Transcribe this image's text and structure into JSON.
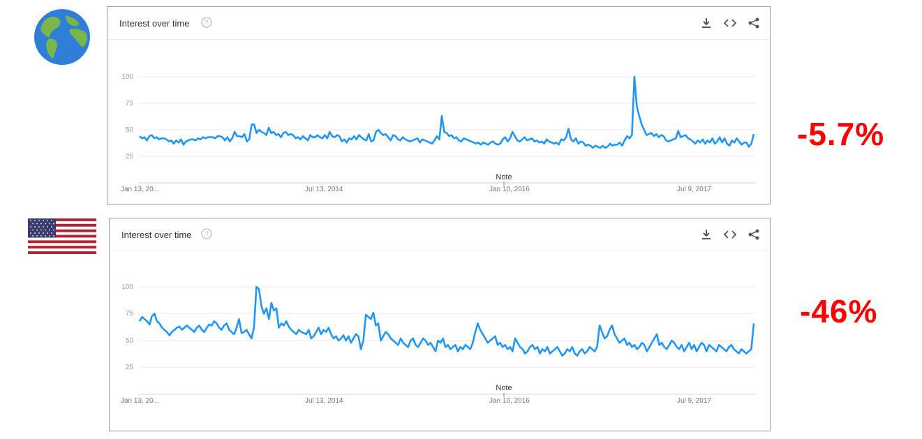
{
  "panels": [
    {
      "region_icon": "globe-icon",
      "title": "Interest over time",
      "tools": [
        "download-icon",
        "embed-icon",
        "share-icon"
      ],
      "change": "-5.7%",
      "note": "Note",
      "colors": {
        "line": "#2196f3",
        "change": "#ff0000",
        "grid": "#e9e9e9"
      },
      "chart_data": {
        "type": "line",
        "xlabel": "",
        "ylabel": "",
        "ylim": [
          0,
          100
        ],
        "y_ticks": [
          "25",
          "50",
          "75",
          "100"
        ],
        "x_tick_labels": [
          "Jan 13, 20...",
          "Jul 13, 2014",
          "Jan 10, 2016",
          "Jul 9, 2017"
        ],
        "series": [
          {
            "values": [
              44,
              42,
              43,
              40,
              44,
              45,
              42,
              43,
              41,
              42,
              42,
              41,
              39,
              40,
              37,
              40,
              38,
              41,
              36,
              39,
              40,
              41,
              41,
              40,
              42,
              41,
              43,
              42,
              43,
              43,
              43,
              42,
              44,
              44,
              43,
              40,
              43,
              39,
              42,
              48,
              44,
              44,
              43,
              46,
              39,
              41,
              55,
              55,
              47,
              50,
              48,
              47,
              45,
              52,
              47,
              48,
              45,
              46,
              43,
              47,
              48,
              45,
              46,
              45,
              42,
              43,
              41,
              44,
              42,
              40,
              45,
              43,
              43,
              45,
              43,
              42,
              45,
              42,
              48,
              44,
              43,
              45,
              44,
              39,
              41,
              38,
              42,
              41,
              44,
              41,
              45,
              43,
              41,
              40,
              46,
              39,
              40,
              48,
              50,
              47,
              45,
              46,
              43,
              40,
              45,
              44,
              41,
              40,
              43,
              41,
              40,
              39,
              40,
              41,
              42,
              38,
              41,
              40,
              39,
              38,
              37,
              40,
              44,
              41,
              63,
              48,
              47,
              44,
              45,
              42,
              43,
              40,
              39,
              42,
              41,
              40,
              39,
              38,
              37,
              38,
              36,
              38,
              37,
              36,
              38,
              39,
              37,
              36,
              37,
              41,
              43,
              39,
              42,
              48,
              44,
              40,
              39,
              41,
              43,
              40,
              41,
              42,
              39,
              40,
              38,
              39,
              37,
              41,
              39,
              38,
              37,
              38,
              36,
              41,
              40,
              43,
              51,
              41,
              39,
              42,
              37,
              39,
              38,
              35,
              36,
              35,
              33,
              35,
              34,
              33,
              35,
              33,
              34,
              37,
              35,
              36,
              36,
              38,
              35,
              40,
              44,
              42,
              45,
              100,
              72,
              63,
              55,
              50,
              45,
              46,
              47,
              44,
              46,
              43,
              45,
              44,
              40,
              39,
              40,
              41,
              42,
              49,
              43,
              44,
              45,
              42,
              41,
              39,
              37,
              40,
              38,
              41,
              37,
              40,
              38,
              42,
              37,
              39,
              43,
              38,
              42,
              37,
              35,
              40,
              38,
              42,
              39,
              36,
              38,
              38,
              34,
              37,
              46
            ]
          }
        ]
      }
    },
    {
      "region_icon": "us-flag-icon",
      "title": "Interest over time",
      "tools": [
        "download-icon",
        "embed-icon",
        "share-icon"
      ],
      "change": "-46%",
      "note": "Note",
      "colors": {
        "line": "#2196f3",
        "change": "#ff0000",
        "grid": "#e9e9e9"
      },
      "chart_data": {
        "type": "line",
        "xlabel": "",
        "ylabel": "",
        "ylim": [
          0,
          100
        ],
        "y_ticks": [
          "25",
          "50",
          "75",
          "100"
        ],
        "x_tick_labels": [
          "Jan 13, 20...",
          "Jul 13, 2014",
          "Jan 10, 2016",
          "Jul 9, 2017"
        ],
        "series": [
          {
            "values": [
              68,
              72,
              70,
              68,
              65,
              73,
              75,
              68,
              66,
              62,
              60,
              58,
              55,
              58,
              60,
              62,
              63,
              60,
              62,
              64,
              62,
              60,
              58,
              62,
              64,
              60,
              58,
              62,
              65,
              64,
              68,
              66,
              62,
              60,
              64,
              66,
              60,
              58,
              56,
              62,
              70,
              57,
              58,
              60,
              56,
              52,
              62,
              100,
              98,
              82,
              75,
              80,
              70,
              85,
              78,
              80,
              62,
              66,
              64,
              68,
              63,
              60,
              58,
              56,
              60,
              58,
              57,
              56,
              60,
              52,
              54,
              58,
              62,
              56,
              60,
              58,
              62,
              56,
              52,
              54,
              50,
              52,
              55,
              50,
              54,
              48,
              52,
              56,
              54,
              42,
              50,
              74,
              72,
              70,
              76,
              64,
              66,
              50,
              54,
              58,
              56,
              52,
              50,
              48,
              46,
              52,
              48,
              46,
              44,
              50,
              52,
              46,
              44,
              48,
              52,
              50,
              46,
              48,
              44,
              40,
              50,
              48,
              52,
              44,
              46,
              42,
              44,
              46,
              40,
              44,
              42,
              46,
              44,
              42,
              48,
              58,
              66,
              60,
              56,
              52,
              48,
              50,
              52,
              54,
              46,
              48,
              44,
              46,
              42,
              44,
              40,
              52,
              48,
              44,
              42,
              38,
              40,
              44,
              46,
              42,
              44,
              38,
              42,
              40,
              44,
              38,
              40,
              42,
              44,
              40,
              36,
              38,
              42,
              40,
              44,
              38,
              36,
              40,
              42,
              38,
              40,
              44,
              42,
              40,
              44,
              64,
              58,
              52,
              54,
              60,
              64,
              56,
              52,
              48,
              50,
              52,
              46,
              48,
              44,
              46,
              42,
              44,
              48,
              46,
              40,
              44,
              48,
              52,
              56,
              46,
              48,
              44,
              42,
              46,
              50,
              48,
              44,
              42,
              46,
              40,
              44,
              48,
              42,
              46,
              40,
              44,
              48,
              46,
              40,
              46,
              44,
              42,
              40,
              46,
              44,
              42,
              40,
              44,
              46,
              42,
              40,
              38,
              42,
              40,
              38,
              40,
              42,
              66
            ]
          }
        ]
      }
    }
  ]
}
